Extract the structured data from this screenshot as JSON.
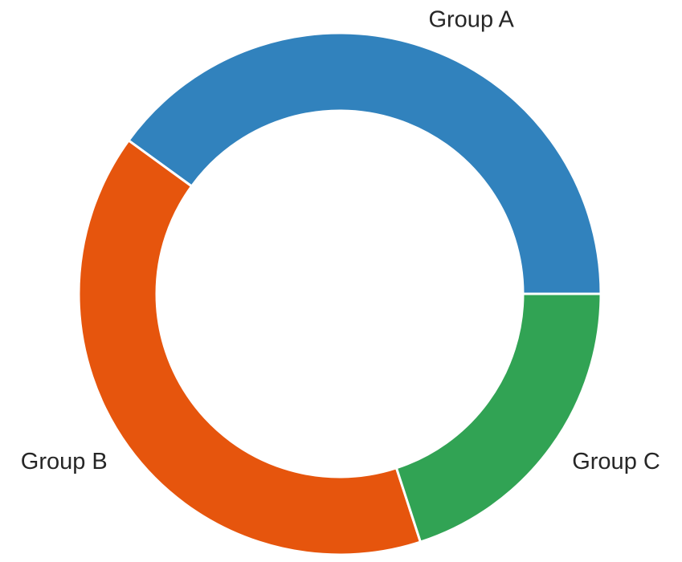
{
  "chart_data": {
    "type": "donut",
    "categories": [
      "Group A",
      "Group B",
      "Group C"
    ],
    "values": [
      40,
      40,
      20
    ],
    "colors": [
      "#3182bd",
      "#e6550d",
      "#31a354"
    ]
  }
}
